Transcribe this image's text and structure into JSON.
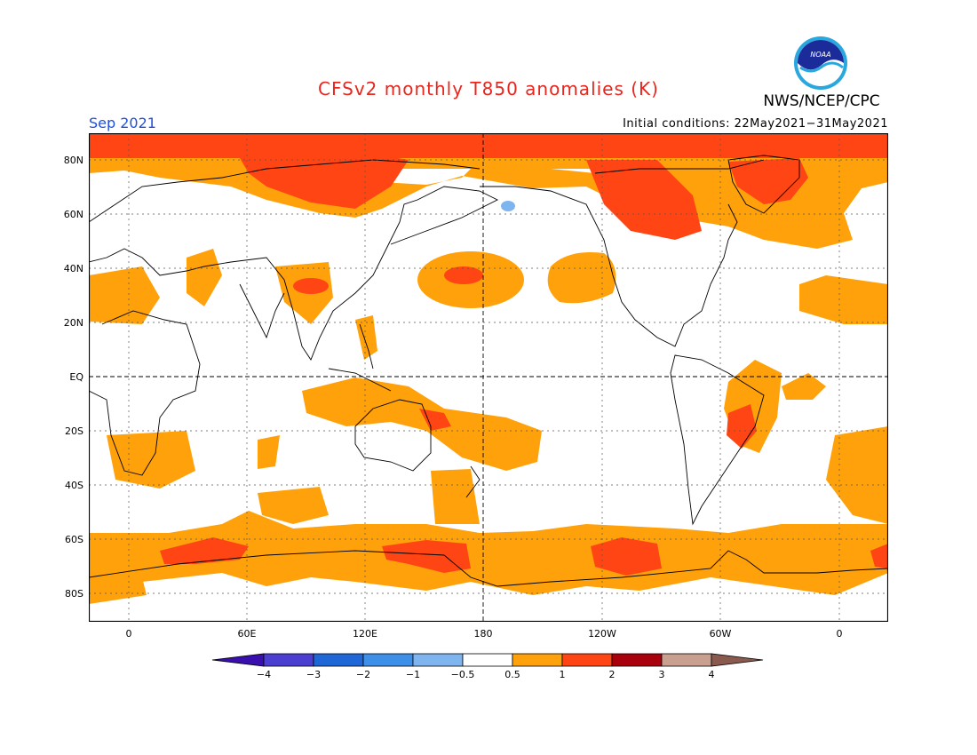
{
  "header": {
    "title": "CFSv2 monthly T850 anomalies (K)",
    "org": "NWS/NCEP/CPC",
    "logo_text": "NOAA",
    "month": "Sep 2021",
    "init": "Initial conditions: 22May2021−31May2021"
  },
  "axes": {
    "lat_labels": [
      "80N",
      "60N",
      "40N",
      "20N",
      "EQ",
      "20S",
      "40S",
      "60S",
      "80S"
    ],
    "lon_labels": [
      "0",
      "60E",
      "120E",
      "180",
      "120W",
      "60W",
      "0"
    ]
  },
  "colorbar": {
    "labels": [
      "−4",
      "−3",
      "−2",
      "−1",
      "−0.5",
      "0.5",
      "1",
      "2",
      "3",
      "4"
    ],
    "colors": [
      "#3a0fb0",
      "#4a3fd0",
      "#1f66d6",
      "#3d8fe8",
      "#7fb5ef",
      "#ffffff",
      "#ffa10a",
      "#ff4513",
      "#a8000c",
      "#c9a090",
      "#8b5a4f"
    ]
  },
  "colors": {
    "c05": "#ffa10a",
    "c1": "#ff4513",
    "c2": "#e43a10",
    "neg": "#7fb5ef",
    "land": "#000000"
  }
}
